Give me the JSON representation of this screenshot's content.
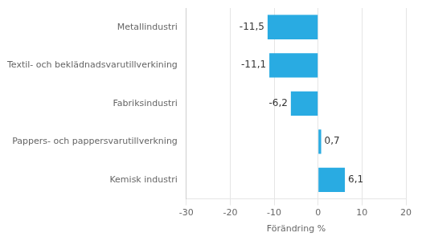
{
  "chart_data": {
    "type": "bar",
    "orientation": "horizontal",
    "categories": [
      "Metallindustri",
      "Textil- och beklädnadsvarutillverkining",
      "Fabriksindustri",
      "Pappers- och pappersvarutillverkning",
      "Kemisk industri"
    ],
    "values": [
      -11.5,
      -11.1,
      -6.2,
      0.7,
      6.1
    ],
    "value_labels": [
      "-11,5",
      "-11,1",
      "-6,2",
      "0,7",
      "6,1"
    ],
    "data_labels": true,
    "color": "#29abe2",
    "xlabel": "Förändring %",
    "xlim": [
      -30,
      20
    ],
    "xticks": [
      -30,
      -20,
      -10,
      0,
      10,
      20
    ],
    "grid": true
  }
}
